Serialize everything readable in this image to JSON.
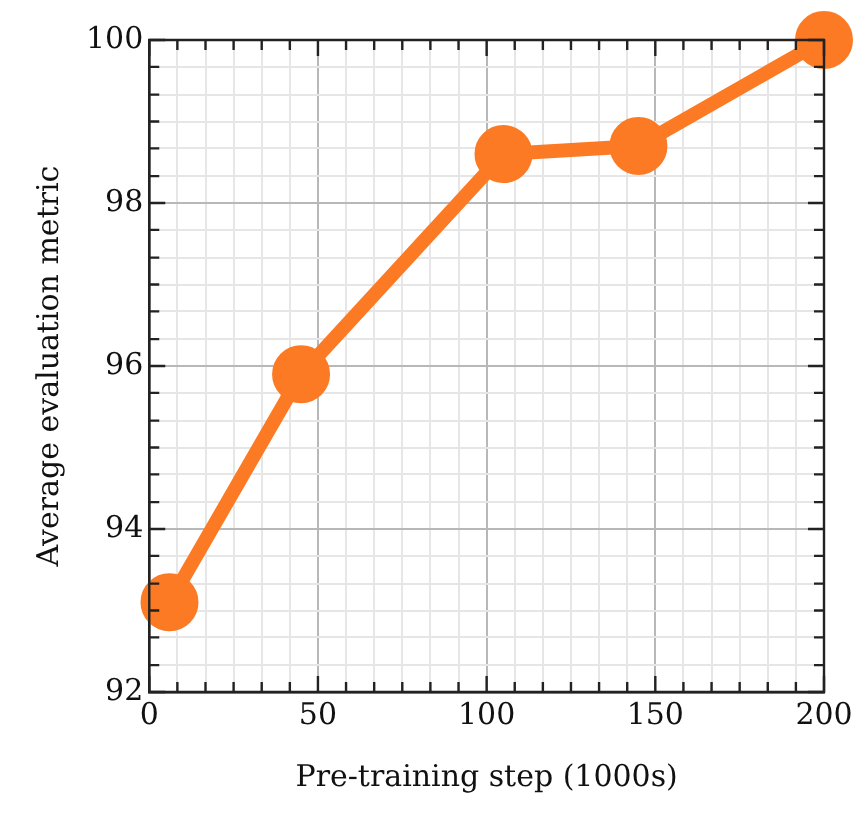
{
  "chart_data": {
    "type": "line",
    "xlabel": "Pre-training step (1000s)",
    "ylabel": "Average evaluation metric",
    "x": [
      6,
      45,
      105,
      145,
      200
    ],
    "series": [
      {
        "color": "#fc7a24",
        "values": [
          93.1,
          95.9,
          98.6,
          98.7,
          100
        ]
      }
    ],
    "xlim": [
      0,
      200
    ],
    "xticks": [
      0,
      {
        "value": 8.33,
        "label": null
      },
      {
        "value": 16.67,
        "label": null
      },
      {
        "value": 25,
        "label": null
      },
      {
        "value": 33.33,
        "label": null
      },
      {
        "value": 41.67,
        "label": null
      },
      50,
      {
        "value": 58.33,
        "label": null
      },
      {
        "value": 66.67,
        "label": null
      },
      {
        "value": 75,
        "label": null
      },
      {
        "value": 83.33,
        "label": null
      },
      {
        "value": 91.67,
        "label": null
      },
      100,
      {
        "value": 108.33,
        "label": null
      },
      {
        "value": 116.67,
        "label": null
      },
      {
        "value": 125,
        "label": null
      },
      {
        "value": 133.33,
        "label": null
      },
      {
        "value": 141.67,
        "label": null
      },
      150,
      {
        "value": 158.33,
        "label": null
      },
      {
        "value": 166.67,
        "label": null
      },
      {
        "value": 175,
        "label": null
      },
      {
        "value": 183.33,
        "label": null
      },
      {
        "value": 191.67,
        "label": null
      },
      200
    ],
    "ylim": [
      92,
      100
    ],
    "yticks": [
      92,
      {
        "value": 92.33,
        "label": null
      },
      {
        "value": 92.67,
        "label": null
      },
      {
        "value": 93,
        "label": null
      },
      {
        "value": 93.33,
        "label": null
      },
      {
        "value": 93.67,
        "label": null
      },
      94,
      {
        "value": 94.33,
        "label": null
      },
      {
        "value": 94.67,
        "label": null
      },
      {
        "value": 95,
        "label": null
      },
      {
        "value": 95.33,
        "label": null
      },
      {
        "value": 95.67,
        "label": null
      },
      96,
      {
        "value": 96.33,
        "label": null
      },
      {
        "value": 96.67,
        "label": null
      },
      {
        "value": 97,
        "label": null
      },
      {
        "value": 97.33,
        "label": null
      },
      {
        "value": 97.67,
        "label": null
      },
      98,
      {
        "value": 98.33,
        "label": null
      },
      {
        "value": 98.67,
        "label": null
      },
      {
        "value": 99,
        "label": null
      },
      {
        "value": 99.33,
        "label": null
      },
      {
        "value": 99.67,
        "label": null
      },
      100
    ],
    "grid": true,
    "marker": "circle",
    "line_style": "solid",
    "legend": false
  }
}
